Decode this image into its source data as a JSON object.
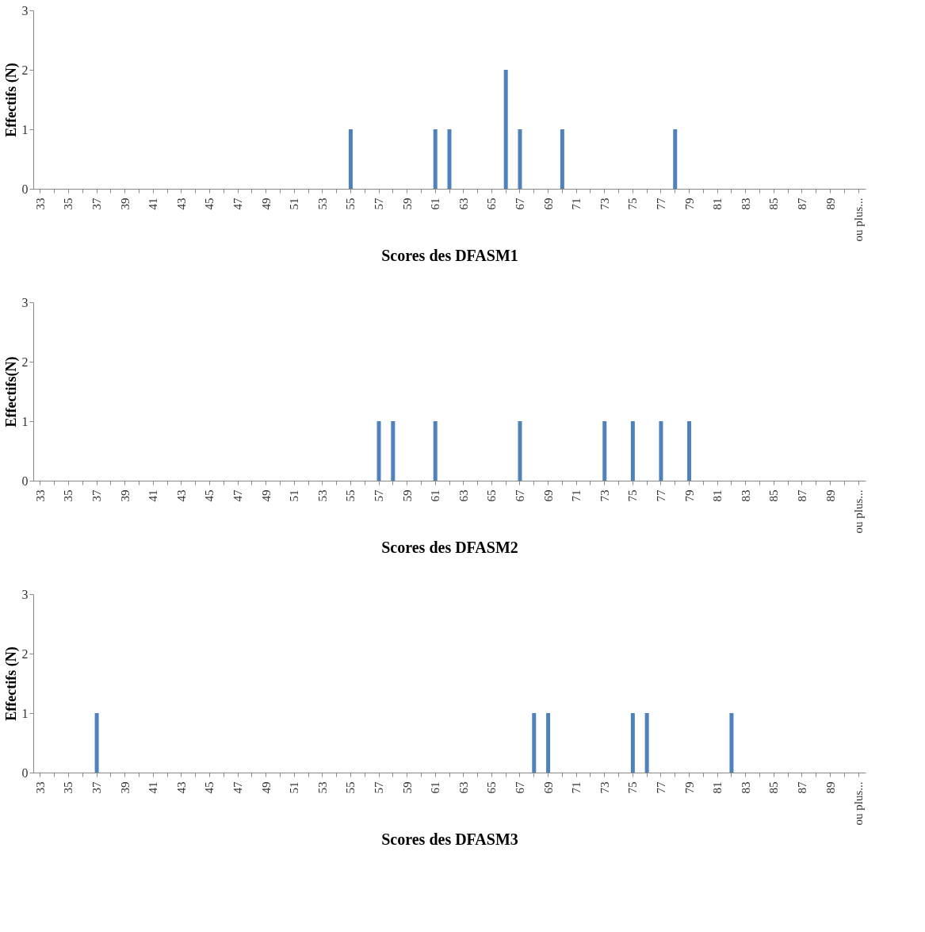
{
  "chart_data": [
    {
      "type": "bar",
      "xlabel": "Scores des DFASM1",
      "ylabel": "Effectifs (N)",
      "categories": [
        "33",
        null,
        "35",
        null,
        "37",
        null,
        "39",
        null,
        "41",
        null,
        "43",
        null,
        "45",
        null,
        "47",
        null,
        "49",
        null,
        "51",
        null,
        "53",
        null,
        "55",
        null,
        "57",
        null,
        "59",
        null,
        "61",
        null,
        "63",
        null,
        "65",
        null,
        "67",
        null,
        "69",
        null,
        "71",
        null,
        "73",
        null,
        "75",
        null,
        "77",
        null,
        "79",
        null,
        "81",
        null,
        "83",
        null,
        "85",
        null,
        "87",
        null,
        "89",
        null,
        "ou plus..."
      ],
      "series": [
        {
          "color": "#4f81bd",
          "values": [
            0,
            0,
            0,
            0,
            0,
            0,
            0,
            0,
            0,
            0,
            0,
            0,
            0,
            0,
            0,
            0,
            0,
            0,
            0,
            0,
            0,
            0,
            1,
            0,
            0,
            0,
            0,
            0,
            1,
            1,
            0,
            0,
            0,
            2,
            1,
            0,
            0,
            1,
            0,
            0,
            0,
            0,
            0,
            0,
            0,
            1,
            0,
            0,
            0,
            0,
            0,
            0,
            0,
            0,
            0,
            0,
            0,
            0,
            0
          ]
        }
      ],
      "ylim": [
        0,
        3
      ],
      "yticks": [
        0,
        1,
        2,
        3
      ],
      "grid": false
    },
    {
      "type": "bar",
      "xlabel": "Scores des DFASM2",
      "ylabel": "Effectifs(N)",
      "categories": [
        "33",
        null,
        "35",
        null,
        "37",
        null,
        "39",
        null,
        "41",
        null,
        "43",
        null,
        "45",
        null,
        "47",
        null,
        "49",
        null,
        "51",
        null,
        "53",
        null,
        "55",
        null,
        "57",
        null,
        "59",
        null,
        "61",
        null,
        "63",
        null,
        "65",
        null,
        "67",
        null,
        "69",
        null,
        "71",
        null,
        "73",
        null,
        "75",
        null,
        "77",
        null,
        "79",
        null,
        "81",
        null,
        "83",
        null,
        "85",
        null,
        "87",
        null,
        "89",
        null,
        "ou plus..."
      ],
      "series": [
        {
          "color": "#4f81bd",
          "values": [
            0,
            0,
            0,
            0,
            0,
            0,
            0,
            0,
            0,
            0,
            0,
            0,
            0,
            0,
            0,
            0,
            0,
            0,
            0,
            0,
            0,
            0,
            0,
            0,
            1,
            1,
            0,
            0,
            1,
            0,
            0,
            0,
            0,
            0,
            1,
            0,
            0,
            0,
            0,
            0,
            1,
            0,
            1,
            0,
            1,
            0,
            1,
            0,
            0,
            0,
            0,
            0,
            0,
            0,
            0,
            0,
            0,
            0,
            0
          ]
        }
      ],
      "ylim": [
        0,
        3
      ],
      "yticks": [
        0,
        1,
        2,
        3
      ],
      "grid": false
    },
    {
      "type": "bar",
      "xlabel": "Scores des DFASM3",
      "ylabel": "Effectifs (N)",
      "categories": [
        "33",
        null,
        "35",
        null,
        "37",
        null,
        "39",
        null,
        "41",
        null,
        "43",
        null,
        "45",
        null,
        "47",
        null,
        "49",
        null,
        "51",
        null,
        "53",
        null,
        "55",
        null,
        "57",
        null,
        "59",
        null,
        "61",
        null,
        "63",
        null,
        "65",
        null,
        "67",
        null,
        "69",
        null,
        "71",
        null,
        "73",
        null,
        "75",
        null,
        "77",
        null,
        "79",
        null,
        "81",
        null,
        "83",
        null,
        "85",
        null,
        "87",
        null,
        "89",
        null,
        "ou plus..."
      ],
      "series": [
        {
          "color": "#4f81bd",
          "values": [
            0,
            0,
            0,
            0,
            1,
            0,
            0,
            0,
            0,
            0,
            0,
            0,
            0,
            0,
            0,
            0,
            0,
            0,
            0,
            0,
            0,
            0,
            0,
            0,
            0,
            0,
            0,
            0,
            0,
            0,
            0,
            0,
            0,
            0,
            0,
            1,
            1,
            0,
            0,
            0,
            0,
            0,
            1,
            1,
            0,
            0,
            0,
            0,
            0,
            1,
            0,
            0,
            0,
            0,
            0,
            0,
            0,
            0,
            0
          ]
        }
      ],
      "ylim": [
        0,
        3
      ],
      "yticks": [
        0,
        1,
        2,
        3
      ],
      "grid": false
    }
  ]
}
